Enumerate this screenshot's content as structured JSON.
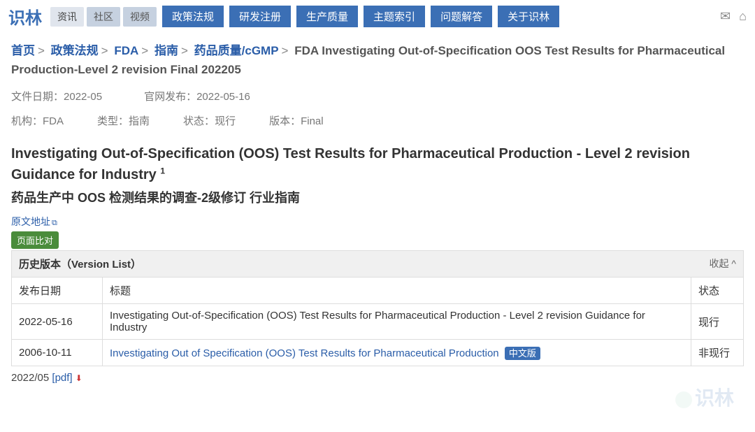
{
  "logo": "识林",
  "navTabs": [
    "资讯",
    "社区",
    "视频"
  ],
  "navButtons": [
    "政策法规",
    "研发注册",
    "生产质量",
    "主题索引",
    "问题解答",
    "关于识林"
  ],
  "breadcrumb": {
    "items": [
      "首页",
      "政策法规",
      "FDA",
      "指南",
      "药品质量/cGMP"
    ],
    "current": "FDA Investigating Out-of-Specification OOS Test Results for Pharmaceutical Production-Level 2 revision Final 202205"
  },
  "meta1": {
    "fileDateLabel": "文件日期：",
    "fileDate": "2022-05",
    "pubDateLabel": "官网发布：",
    "pubDate": "2022-05-16"
  },
  "meta2": {
    "orgLabel": "机构：",
    "org": "FDA",
    "typeLabel": "类型：",
    "type": "指南",
    "statusLabel": "状态：",
    "status": "现行",
    "versionLabel": "版本：",
    "version": "Final"
  },
  "docTitle": "Investigating Out-of-Specification (OOS) Test Results for Pharmaceutical Production - Level 2 revision Guidance for Industry ",
  "footnoteMark": "1",
  "docSubtitle": "药品生产中 OOS 检测结果的调查-2级修订 行业指南",
  "sourceLinkLabel": "原文地址",
  "compareBtn": "页面比对",
  "versionTable": {
    "header": "历史版本（Version List）",
    "collapse": "收起 ^",
    "cols": {
      "date": "发布日期",
      "title": "标题",
      "status": "状态"
    },
    "rows": [
      {
        "date": "2022-05-16",
        "title": "Investigating Out-of-Specification (OOS) Test Results for Pharmaceutical Production - Level 2 revision Guidance for Industry",
        "status": "现行",
        "link": false,
        "cnBadge": false
      },
      {
        "date": "2006-10-11",
        "title": "Investigating Out of Specification (OOS) Test Results for Pharmaceutical Production",
        "status": "非现行",
        "link": true,
        "cnBadge": true
      }
    ],
    "cnBadgeLabel": "中文版"
  },
  "bottom": {
    "date": "2022/05",
    "pdfLabel": "[pdf]"
  },
  "watermark": "识林"
}
